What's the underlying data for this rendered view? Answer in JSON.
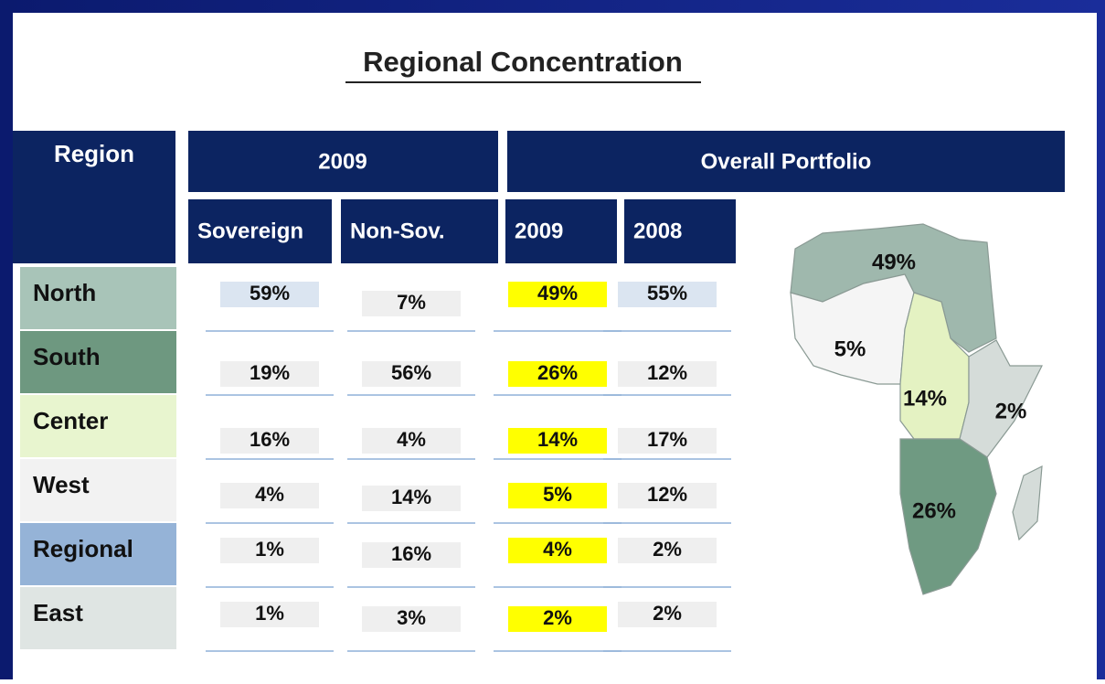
{
  "title": "Regional Concentration",
  "table": {
    "header": {
      "region": "Region",
      "group_2009": "2009",
      "group_overall": "Overall Portfolio",
      "columns": [
        "Sovereign",
        "Non-Sov.",
        "2009",
        "2008"
      ]
    },
    "rows": [
      [
        "North",
        "59%",
        "7%",
        "49%",
        "55%"
      ],
      [
        "South",
        "19%",
        "56%",
        "26%",
        "12%"
      ],
      [
        "Center",
        "16%",
        "4%",
        "14%",
        "17%"
      ],
      [
        "West",
        "4%",
        "14%",
        "5%",
        "12%"
      ],
      [
        "Regional",
        "1%",
        "16%",
        "4%",
        "2%"
      ],
      [
        "East",
        "1%",
        "3%",
        "2%",
        "2%"
      ]
    ]
  },
  "map": {
    "labels": {
      "north": "49%",
      "west": "5%",
      "center": "14%",
      "east": "2%",
      "south": "26%"
    }
  }
}
